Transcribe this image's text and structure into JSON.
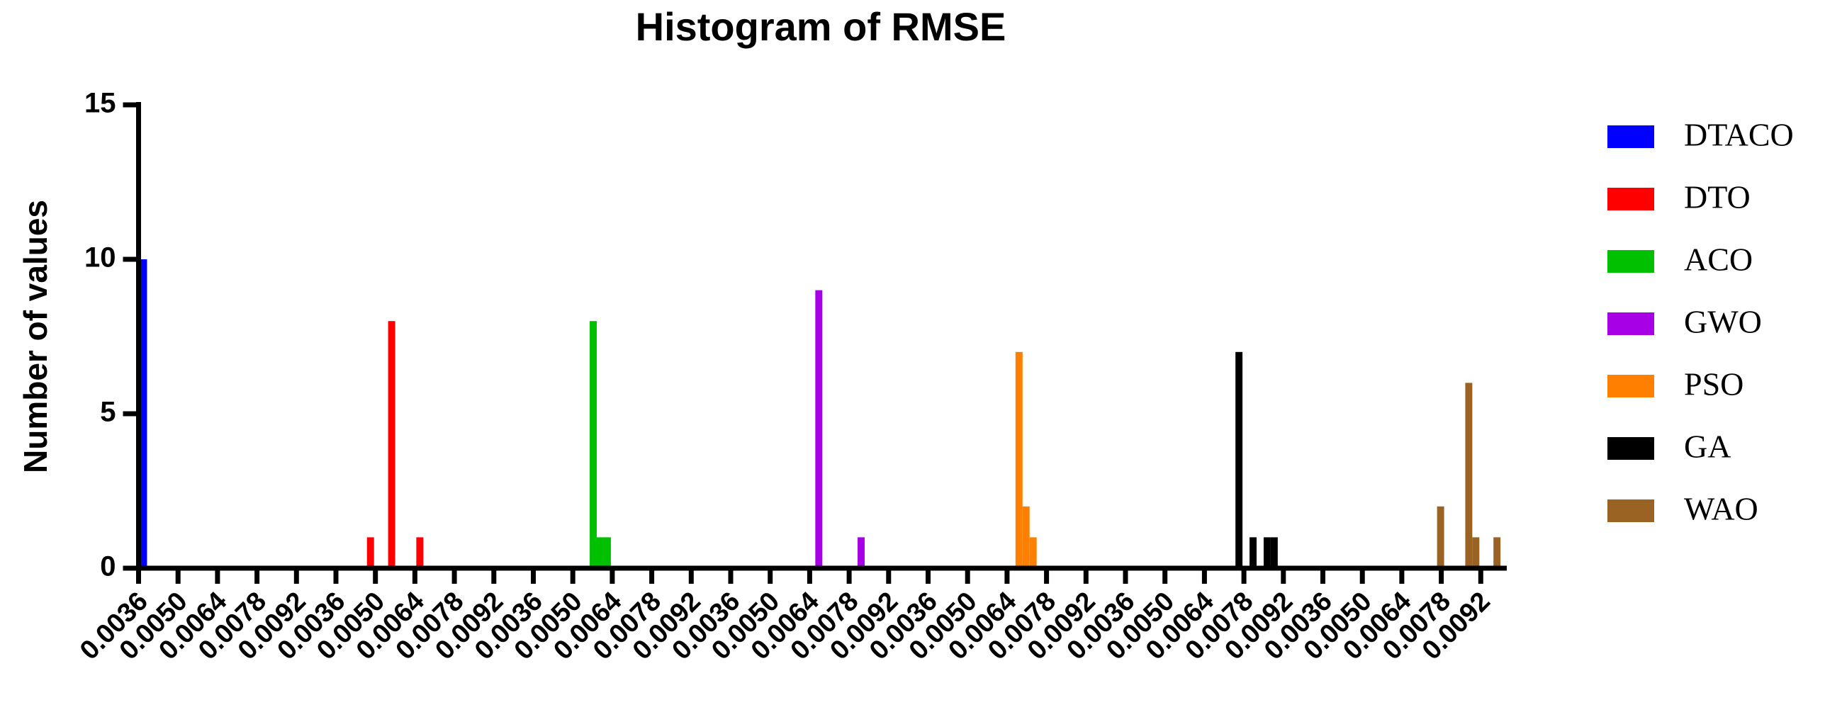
{
  "chart_data": {
    "type": "histogram",
    "title": "Histogram of RMSE",
    "ylabel": "Number of values",
    "ylim": [
      0,
      15
    ],
    "yticks": [
      0,
      5,
      10,
      15
    ],
    "xticks": [
      0.0036,
      {
        "value": 0.005,
        "label": "0.0050"
      },
      0.0064,
      0.0078,
      0.0092
    ],
    "legend": "right",
    "series": [
      {
        "name": "DTACO",
        "color": "#0000ff",
        "bins": [
          0.0036,
          0.0039
        ],
        "values": [
          10
        ]
      },
      {
        "name": "DTO",
        "color": "#ff0000",
        "bins": [
          0.0047,
          0.00495,
          0.0052,
          0.00545,
          0.0057,
          0.00595,
          0.0062,
          0.00645,
          0.0067
        ],
        "values": [
          1,
          0,
          0,
          8,
          0,
          0,
          0,
          1
        ]
      },
      {
        "name": "ACO",
        "color": "#00c000",
        "bins": [
          0.0056,
          0.00585,
          0.0061,
          0.00635
        ],
        "values": [
          8,
          1,
          1
        ]
      },
      {
        "name": "GWO",
        "color": "#a800e6",
        "bins": [
          0.0066,
          0.00685,
          0.0071,
          0.00735,
          0.0076,
          0.00785,
          0.0081,
          0.00835
        ],
        "values": [
          9,
          0,
          0,
          0,
          0,
          0,
          1
        ]
      },
      {
        "name": "PSO",
        "color": "#ff8000",
        "bins": [
          0.0067,
          0.00695,
          0.0072,
          0.00745
        ],
        "values": [
          7,
          2,
          1
        ]
      },
      {
        "name": "GA",
        "color": "#000000",
        "bins": [
          0.0075,
          0.00775,
          0.008,
          0.00825,
          0.0085,
          0.00875,
          0.009
        ],
        "values": [
          7,
          0,
          1,
          0,
          1,
          1
        ]
      },
      {
        "name": "WAO",
        "color": "#9a6324",
        "bins": [
          0.00765,
          0.0079,
          0.00815,
          0.0084,
          0.00865,
          0.0089,
          0.00915,
          0.0094,
          0.00965,
          0.0099
        ],
        "values": [
          2,
          0,
          0,
          0,
          6,
          1,
          0,
          0,
          1
        ]
      }
    ]
  }
}
